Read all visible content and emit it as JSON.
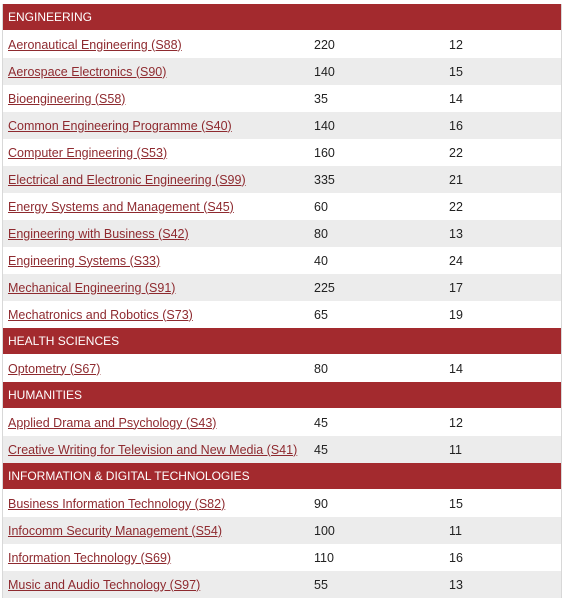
{
  "sections": [
    {
      "title": "ENGINEERING",
      "rows": [
        {
          "name": "Aeronautical Engineering (S88)",
          "a": "220",
          "b": "12"
        },
        {
          "name": "Aerospace Electronics (S90)",
          "a": "140",
          "b": "15"
        },
        {
          "name": "Bioengineering (S58)",
          "a": "35",
          "b": "14"
        },
        {
          "name": "Common Engineering Programme (S40)",
          "a": "140",
          "b": "16"
        },
        {
          "name": "Computer Engineering (S53)",
          "a": "160",
          "b": "22"
        },
        {
          "name": "Electrical and Electronic Engineering (S99)",
          "a": "335",
          "b": "21"
        },
        {
          "name": "Energy Systems and Management (S45)",
          "a": "60",
          "b": "22"
        },
        {
          "name": "Engineering with Business (S42)",
          "a": "80",
          "b": "13"
        },
        {
          "name": "Engineering Systems (S33)",
          "a": "40",
          "b": "24"
        },
        {
          "name": "Mechanical Engineering (S91)",
          "a": "225",
          "b": "17"
        },
        {
          "name": "Mechatronics and Robotics (S73)",
          "a": "65",
          "b": "19"
        }
      ]
    },
    {
      "title": "HEALTH SCIENCES",
      "rows": [
        {
          "name": "Optometry (S67)",
          "a": "80",
          "b": "14"
        }
      ]
    },
    {
      "title": "HUMANITIES",
      "rows": [
        {
          "name": "Applied Drama and Psychology (S43)",
          "a": "45",
          "b": "12"
        },
        {
          "name": "Creative Writing for Television and New Media (S41)",
          "a": "45",
          "b": "11"
        }
      ]
    },
    {
      "title": "INFORMATION & DIGITAL TECHNOLOGIES",
      "rows": [
        {
          "name": "Business Information Technology (S82)",
          "a": "90",
          "b": "15"
        },
        {
          "name": "Infocomm Security Management (S54)",
          "a": "100",
          "b": "11"
        },
        {
          "name": "Information Technology (S69)",
          "a": "110",
          "b": "16"
        },
        {
          "name": "Music and Audio Technology (S97)",
          "a": "55",
          "b": "13"
        }
      ]
    }
  ]
}
